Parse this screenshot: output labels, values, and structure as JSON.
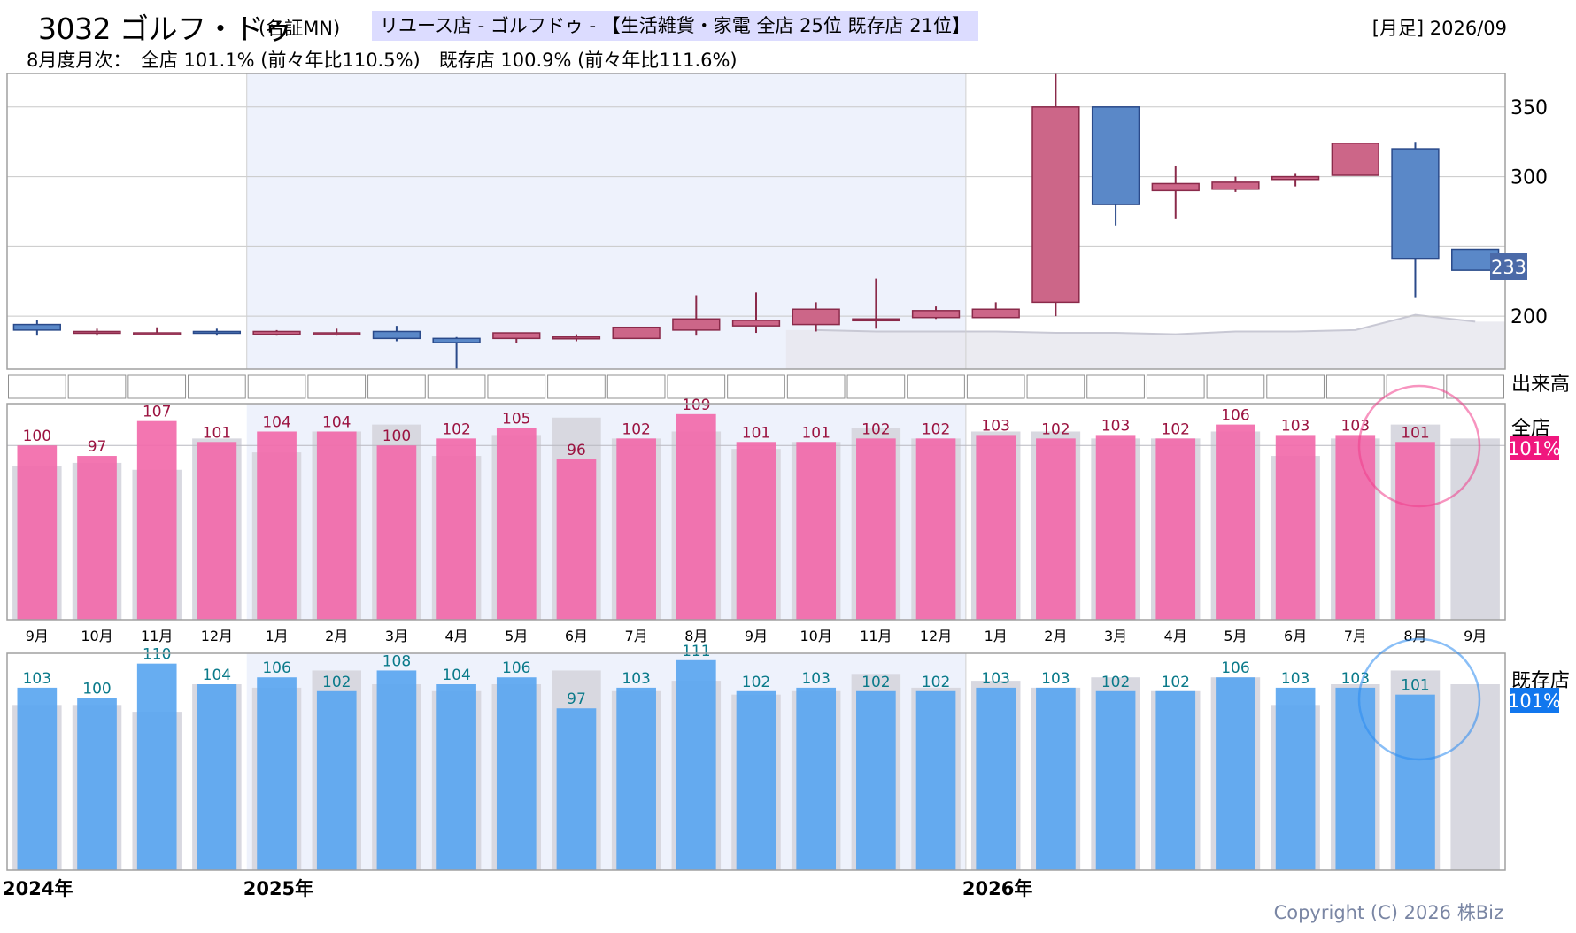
{
  "header": {
    "code_name": "3032 ゴルフ・ドゥ",
    "market": "(名証MN)",
    "category": "リユース店 - ゴルフドゥ - 【生活雑貨・家電 全店 25位 既存店 21位】",
    "period": "[月足] 2026/09",
    "monthly_summary": "8月度月次：　全店 101.1% (前々年比110.5%)　既存店 100.9% (前々年比111.6%)"
  },
  "labels": {
    "volume": "出来高",
    "all_stores": "全店",
    "existing_stores": "既存店",
    "all_badge": "101%",
    "existing_badge": "101%",
    "last_price": "233"
  },
  "copyright": "Copyright (C) 2026 株Biz",
  "colors": {
    "up_candle": "#cc6688",
    "down_candle": "#5a88c8",
    "all_bar": "#f26aaa",
    "existing_bar": "#5aa6f0",
    "prev_bar": "#d8d8e0",
    "highlight_band": "#eef2fc",
    "all_badge": "#f0177e",
    "existing_badge": "#1177ee",
    "all_value_text": "#9b1340",
    "existing_value_text": "#0a7a8a"
  },
  "chart_data": [
    {
      "type": "candlestick",
      "title": "monthly price",
      "months": [
        "9月",
        "10月",
        "11月",
        "12月",
        "1月",
        "2月",
        "3月",
        "4月",
        "5月",
        "6月",
        "7月",
        "8月",
        "9月",
        "10月",
        "11月",
        "12月",
        "1月",
        "2月",
        "3月",
        "4月",
        "5月",
        "6月",
        "7月",
        "8月",
        "9月"
      ],
      "years": [
        {
          "label": "2024年",
          "index": 0
        },
        {
          "label": "2025年",
          "index": 4
        },
        {
          "label": "2026年",
          "index": 16
        }
      ],
      "ohlc": [
        [
          194,
          197,
          186,
          190
        ],
        [
          189,
          191,
          186,
          189
        ],
        [
          188,
          192,
          187,
          188
        ],
        [
          189,
          191,
          186,
          188
        ],
        [
          187,
          190,
          186,
          189
        ],
        [
          188,
          191,
          186,
          188
        ],
        [
          189,
          193,
          182,
          184
        ],
        [
          184,
          185,
          162,
          181
        ],
        [
          184,
          188,
          181,
          188
        ],
        [
          184,
          187,
          182,
          185
        ],
        [
          184,
          192,
          184,
          192
        ],
        [
          190,
          215,
          186,
          198
        ],
        [
          193,
          217,
          188,
          197
        ],
        [
          194,
          210,
          189,
          205
        ],
        [
          198,
          227,
          191,
          198
        ],
        [
          199,
          207,
          198,
          204
        ],
        [
          199,
          210,
          199,
          205
        ],
        [
          210,
          374,
          200,
          350
        ],
        [
          350,
          350,
          265,
          280
        ],
        [
          290,
          308,
          270,
          295
        ],
        [
          291,
          300,
          289,
          296
        ],
        [
          298,
          302,
          293,
          300
        ],
        [
          301,
          324,
          301,
          324
        ],
        [
          320,
          325,
          213,
          241
        ],
        [
          248,
          248,
          233,
          233
        ]
      ],
      "ylim": [
        162,
        374
      ],
      "yticks": [
        200,
        300,
        350
      ],
      "last_price": 233
    },
    {
      "type": "bar",
      "title": "全店",
      "categories": [
        "9月",
        "10月",
        "11月",
        "12月",
        "1月",
        "2月",
        "3月",
        "4月",
        "5月",
        "6月",
        "7月",
        "8月",
        "9月",
        "10月",
        "11月",
        "12月",
        "1月",
        "2月",
        "3月",
        "4月",
        "5月",
        "6月",
        "7月",
        "8月",
        "9月"
      ],
      "values": [
        100,
        97,
        107,
        101,
        104,
        104,
        100,
        102,
        105,
        96,
        102,
        109,
        101,
        101,
        102,
        102,
        103,
        102,
        103,
        102,
        106,
        103,
        103,
        101,
        null
      ],
      "previous_year": [
        94,
        95,
        93,
        102,
        98,
        104,
        106,
        97,
        103,
        108,
        102,
        104,
        99,
        101,
        105,
        102,
        104,
        104,
        102,
        102,
        104,
        97,
        102,
        106,
        102
      ],
      "ylim": [
        50,
        112
      ],
      "reference": 100
    },
    {
      "type": "bar",
      "title": "既存店",
      "categories": [
        "9月",
        "10月",
        "11月",
        "12月",
        "1月",
        "2月",
        "3月",
        "4月",
        "5月",
        "6月",
        "7月",
        "8月",
        "9月",
        "10月",
        "11月",
        "12月",
        "1月",
        "2月",
        "3月",
        "4月",
        "5月",
        "6月",
        "7月",
        "8月",
        "9月"
      ],
      "values": [
        103,
        100,
        110,
        104,
        106,
        102,
        108,
        104,
        106,
        97,
        103,
        111,
        102,
        103,
        102,
        102,
        103,
        103,
        102,
        102,
        106,
        103,
        103,
        101,
        null
      ],
      "previous_year": [
        98,
        98,
        96,
        104,
        103,
        108,
        104,
        102,
        104,
        108,
        102,
        105,
        101,
        102,
        107,
        103,
        105,
        103,
        106,
        102,
        106,
        98,
        104,
        108,
        104
      ],
      "ylim": [
        50,
        113
      ],
      "reference": 100
    }
  ]
}
